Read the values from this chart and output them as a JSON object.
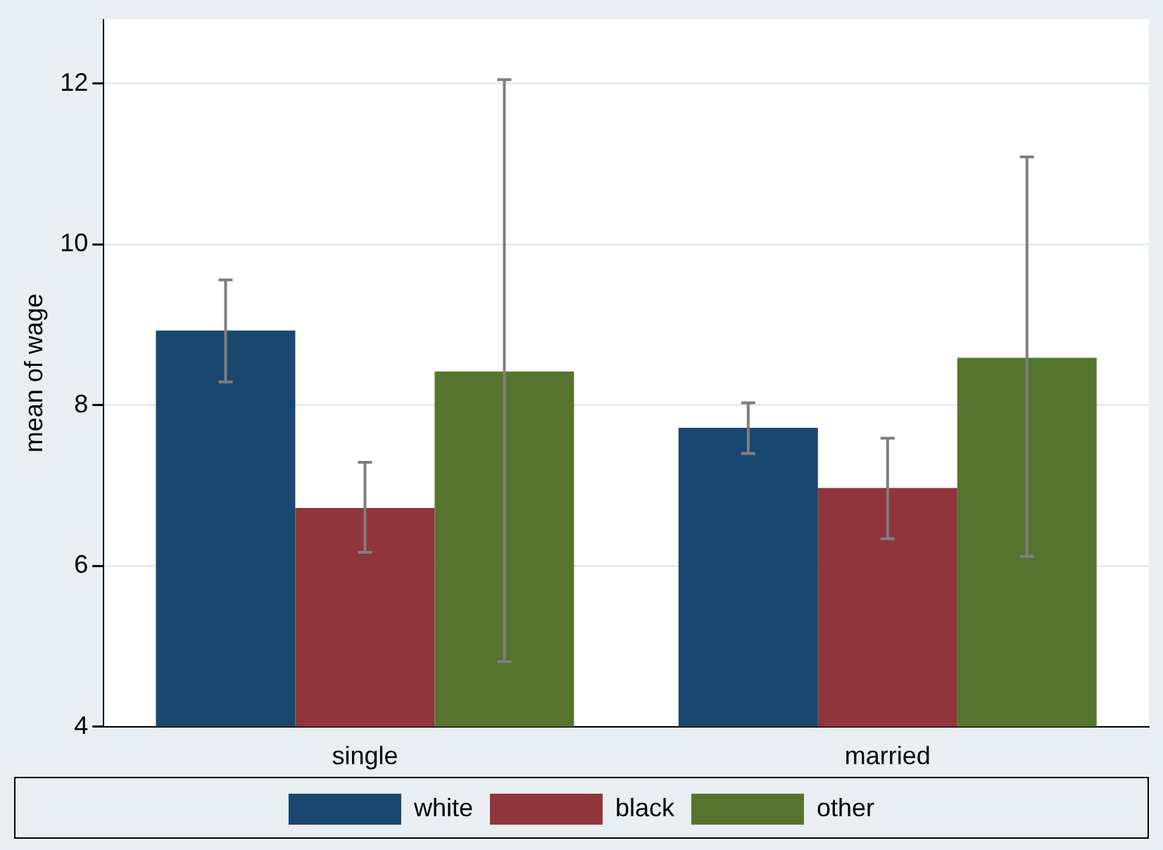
{
  "chart_data": {
    "type": "bar",
    "ylabel": "mean of wage",
    "categories": [
      "single",
      "married"
    ],
    "series": [
      {
        "name": "white",
        "color": "#1a476f",
        "values": [
          8.93,
          7.72
        ],
        "errors": [
          [
            8.29,
            9.56
          ],
          [
            7.4,
            8.03
          ]
        ]
      },
      {
        "name": "black",
        "color": "#90353b",
        "values": [
          6.72,
          6.97
        ],
        "errors": [
          [
            6.17,
            7.29
          ],
          [
            6.34,
            7.59
          ]
        ]
      },
      {
        "name": "other",
        "color": "#55752f",
        "values": [
          8.42,
          8.59
        ],
        "errors": [
          [
            4.81,
            12.05
          ],
          [
            6.12,
            11.09
          ]
        ]
      }
    ],
    "ylim": [
      4,
      12.8
    ],
    "yticks": [
      4,
      6,
      8,
      10,
      12
    ],
    "grid": "y",
    "legend": "bottom"
  }
}
